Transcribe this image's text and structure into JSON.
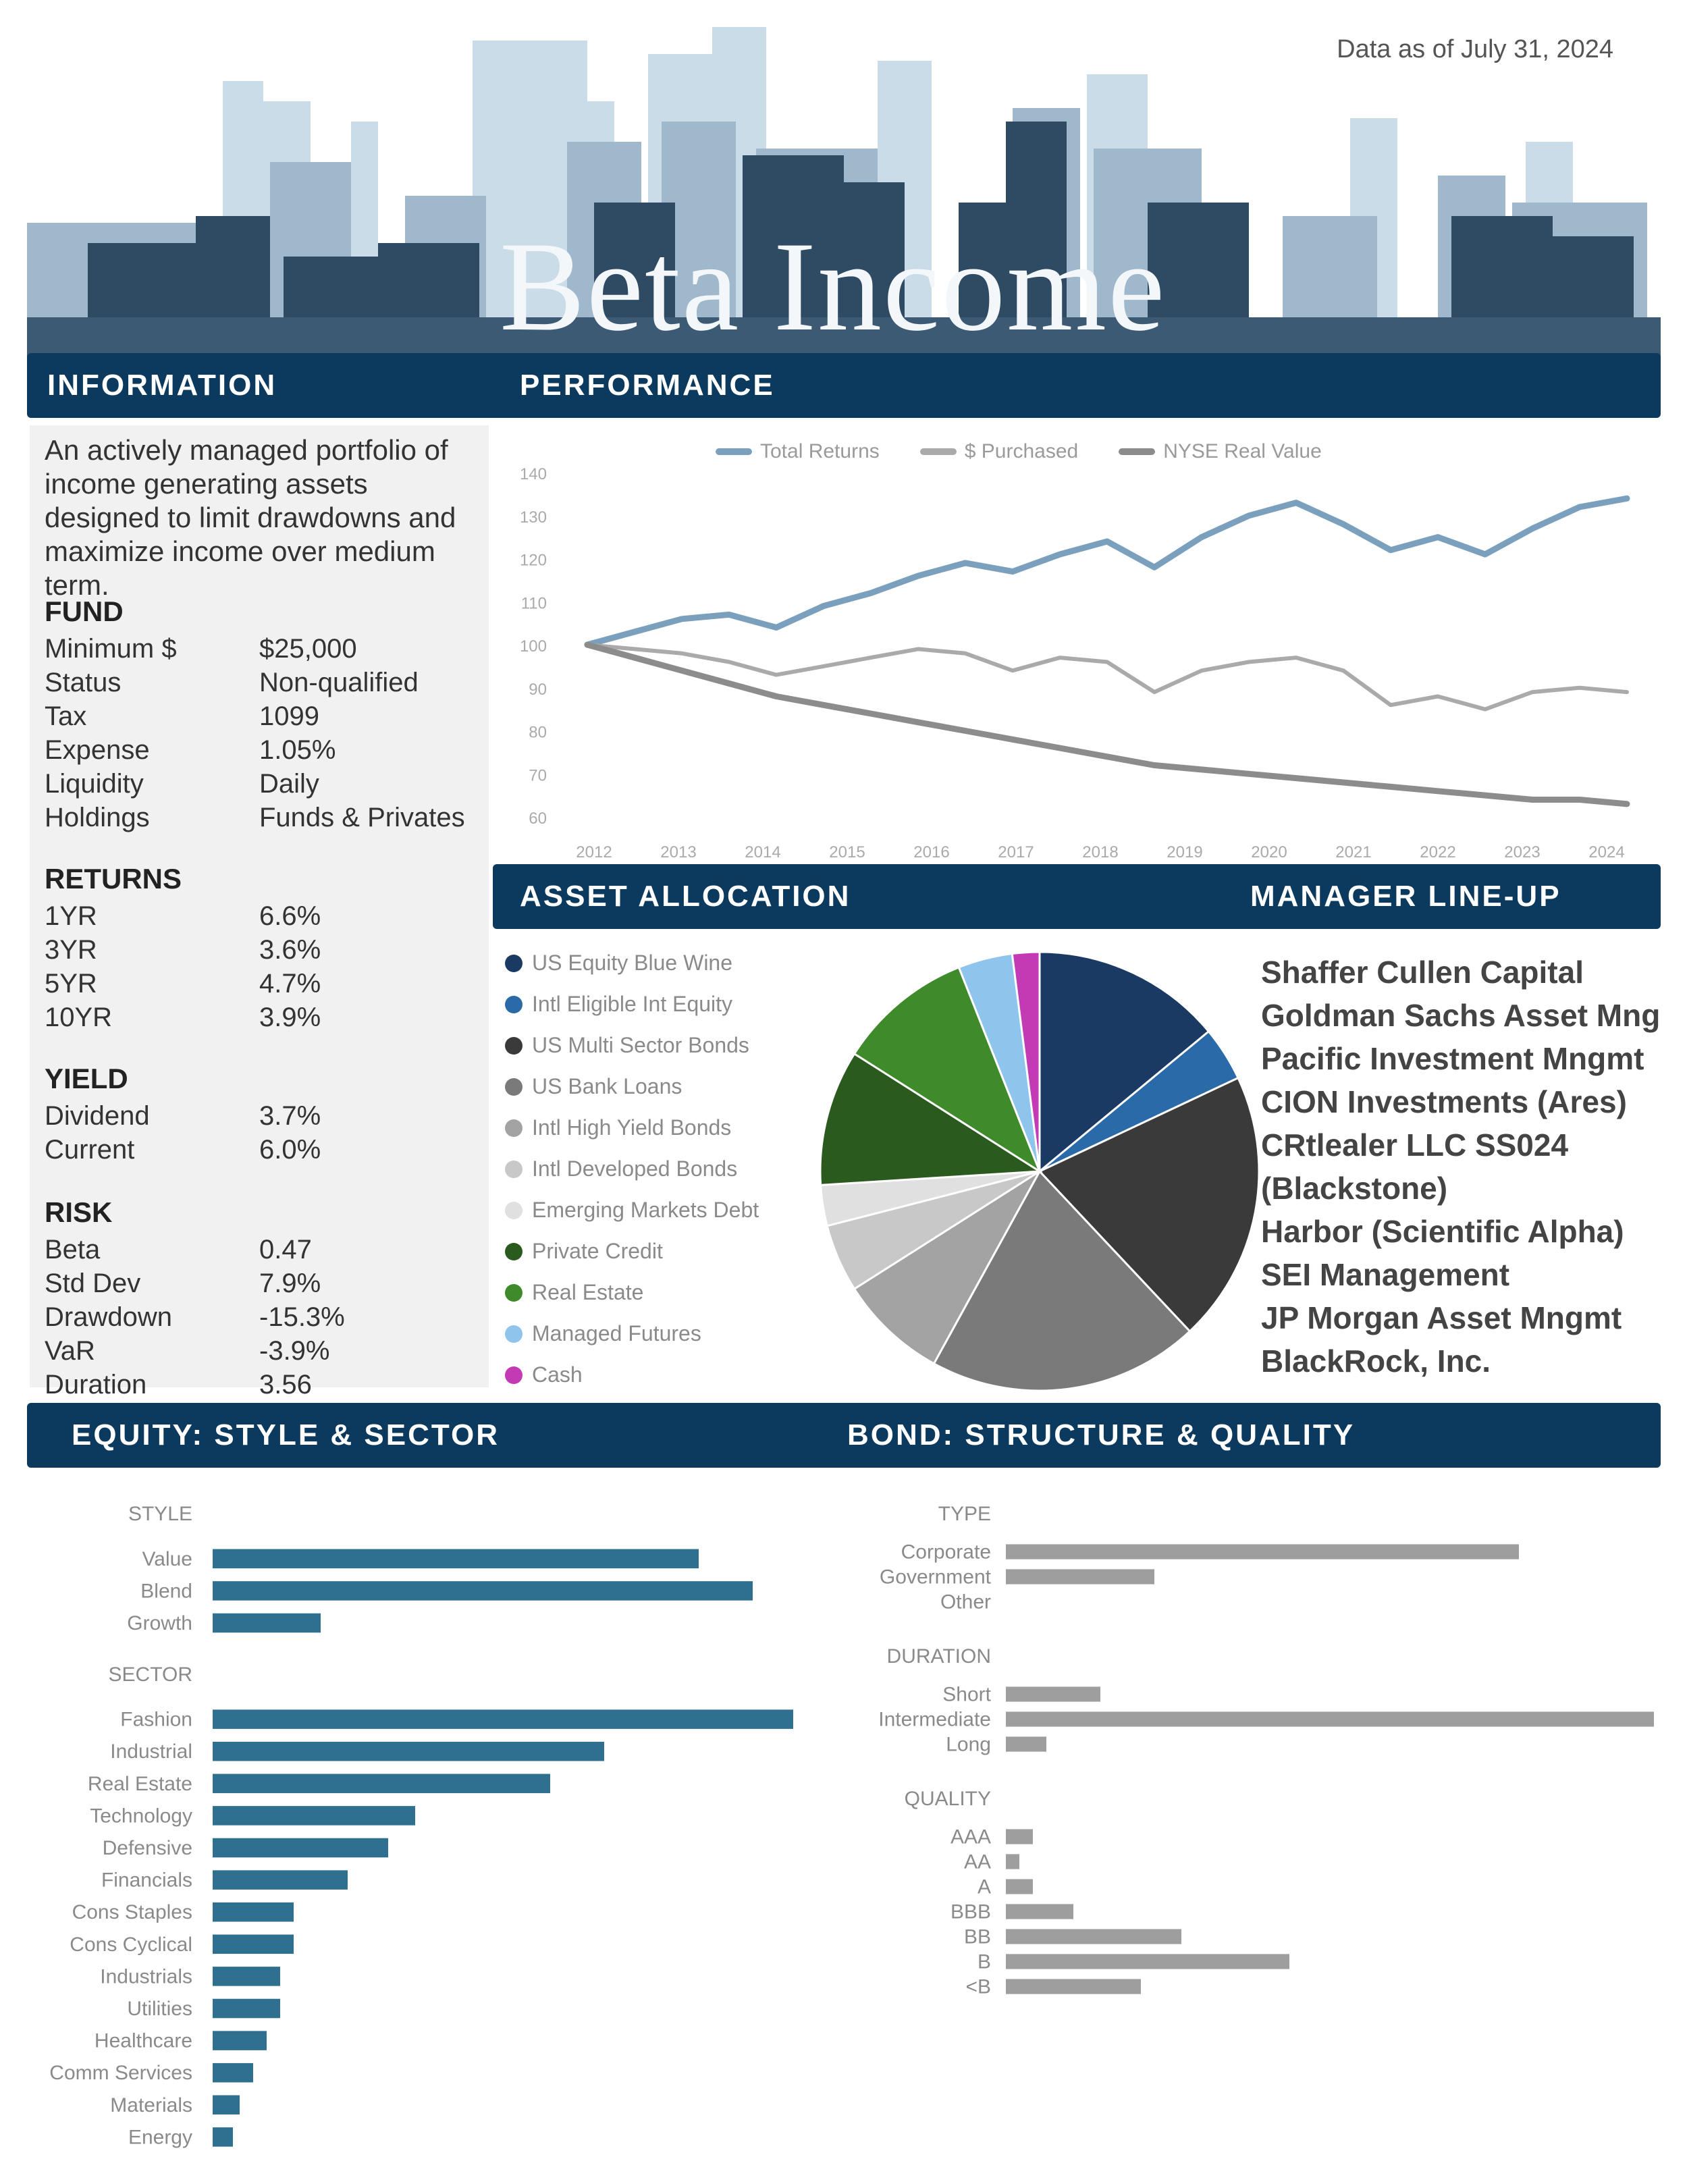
{
  "header": {
    "as_of": "Data as of July 31, 2024",
    "title": "Beta Income"
  },
  "bands": {
    "information": "INFORMATION",
    "performance": "PERFORMANCE",
    "asset_allocation": "ASSET ALLOCATION",
    "manager_lineup": "MANAGER LINE-UP",
    "equity": "EQUITY: STYLE & SECTOR",
    "bond": "BOND: STRUCTURE & QUALITY"
  },
  "information": {
    "description": "An actively managed portfolio of income generating assets designed to limit drawdowns and maximize income over medium term.",
    "fund": {
      "heading": "FUND",
      "rows": [
        {
          "k": "Minimum $",
          "v": "$25,000"
        },
        {
          "k": "Status",
          "v": "Non-qualified"
        },
        {
          "k": "Tax",
          "v": "1099"
        },
        {
          "k": "Expense",
          "v": "1.05%"
        },
        {
          "k": "Liquidity",
          "v": "Daily"
        },
        {
          "k": "Holdings",
          "v": "Funds & Privates"
        }
      ]
    },
    "returns": {
      "heading": "RETURNS",
      "rows": [
        {
          "k": "1YR",
          "v": "6.6%"
        },
        {
          "k": "3YR",
          "v": "3.6%"
        },
        {
          "k": "5YR",
          "v": "4.7%"
        },
        {
          "k": "10YR",
          "v": "3.9%"
        }
      ]
    },
    "yield": {
      "heading": "YIELD",
      "rows": [
        {
          "k": "Dividend",
          "v": "3.7%"
        },
        {
          "k": "Current",
          "v": "6.0%"
        }
      ]
    },
    "risk": {
      "heading": "RISK",
      "rows": [
        {
          "k": "Beta",
          "v": "0.47"
        },
        {
          "k": "Std Dev",
          "v": "7.9%"
        },
        {
          "k": "Drawdown",
          "v": "-15.3%"
        },
        {
          "k": "VaR",
          "v": "-3.9%"
        },
        {
          "k": "Duration",
          "v": "3.56"
        }
      ]
    }
  },
  "performance_legend": [
    "Total Returns",
    "$ Purchased",
    "NYSE Real Value"
  ],
  "allocation_legend": [
    {
      "label": "US Equity Blue Wine",
      "color": "#1b3a63"
    },
    {
      "label": "Intl Eligible Int Equity",
      "color": "#2a6aa8"
    },
    {
      "label": "US Multi Sector Bonds",
      "color": "#3a3a3a"
    },
    {
      "label": "US Bank Loans",
      "color": "#7a7a7a"
    },
    {
      "label": "Intl High Yield Bonds",
      "color": "#a3a3a3"
    },
    {
      "label": "Intl Developed Bonds",
      "color": "#c8c8c8"
    },
    {
      "label": "Emerging Markets Debt",
      "color": "#e0e0e0"
    },
    {
      "label": "Private Credit",
      "color": "#2b5a1e"
    },
    {
      "label": "Real Estate",
      "color": "#3f8a2a"
    },
    {
      "label": "Managed Futures",
      "color": "#8fc4ec"
    },
    {
      "label": "Cash",
      "color": "#c23bb4"
    }
  ],
  "managers": [
    "Shaffer Cullen Capital",
    "Goldman Sachs Asset Mng",
    "Pacific Investment Mngmt",
    "CION Investments (Ares)",
    "CRtlealer LLC SS024",
    "(Blackstone)",
    "Harbor (Scientific Alpha)",
    "SEI Management",
    "JP Morgan Asset Mngmt",
    "BlackRock, Inc."
  ],
  "chart_data": [
    {
      "type": "line",
      "title": "",
      "x_ticks": [
        "2012",
        "2013",
        "2014",
        "2015",
        "2016",
        "2017",
        "2018",
        "2019",
        "2020",
        "2021",
        "2022",
        "2023",
        "2024"
      ],
      "ylim": [
        60,
        140
      ],
      "y_ticks": [
        "140",
        "130",
        "120",
        "110",
        "100",
        "90",
        "80",
        "70",
        "60"
      ],
      "series": [
        {
          "name": "Total Returns",
          "color": "#7aa0be",
          "values": [
            100,
            103,
            106,
            107,
            104,
            109,
            112,
            116,
            119,
            117,
            121,
            124,
            118,
            125,
            130,
            133,
            128,
            122,
            125,
            121,
            127,
            132,
            134
          ]
        },
        {
          "name": "$ Purchased",
          "color": "#aaaaaa",
          "values": [
            100,
            99,
            98,
            96,
            93,
            95,
            97,
            99,
            98,
            94,
            97,
            96,
            89,
            94,
            96,
            97,
            94,
            86,
            88,
            85,
            89,
            90,
            89
          ]
        },
        {
          "name": "NYSE Real Value",
          "color": "#8c8c8c",
          "values": [
            100,
            97,
            94,
            91,
            88,
            86,
            84,
            82,
            80,
            78,
            76,
            74,
            72,
            71,
            70,
            69,
            68,
            67,
            66,
            65,
            64,
            64,
            63
          ]
        }
      ]
    },
    {
      "type": "pie",
      "title": "",
      "series": [
        {
          "name": "US Equity Blue Wine",
          "value": 14
        },
        {
          "name": "Intl Eligible Int Equity",
          "value": 4
        },
        {
          "name": "US Multi Sector Bonds",
          "value": 20
        },
        {
          "name": "US Bank Loans",
          "value": 20
        },
        {
          "name": "Intl High Yield Bonds",
          "value": 8
        },
        {
          "name": "Intl Developed Bonds",
          "value": 5
        },
        {
          "name": "Emerging Markets Debt",
          "value": 3
        },
        {
          "name": "Private Credit",
          "value": 10
        },
        {
          "name": "Real Estate",
          "value": 10
        },
        {
          "name": "Managed Futures",
          "value": 4
        },
        {
          "name": "Cash",
          "value": 2
        }
      ]
    },
    {
      "type": "bar",
      "orientation": "horizontal",
      "title": "",
      "groups": [
        {
          "heading": "STYLE",
          "categories": [
            "Value",
            "Blend",
            "Growth"
          ],
          "values": [
            36,
            40,
            8
          ]
        },
        {
          "heading": "SECTOR",
          "categories": [
            "Fashion",
            "Industrial",
            "Real Estate",
            "Technology",
            "Defensive",
            "Financials",
            "Cons Staples",
            "Cons Cyclical",
            "Industrials",
            "Utilities",
            "Healthcare",
            "Comm Services",
            "Materials",
            "Energy"
          ],
          "values": [
            43,
            29,
            25,
            15,
            13,
            10,
            6,
            6,
            5,
            5,
            4,
            3,
            2,
            1.5
          ]
        }
      ],
      "xlim": [
        0,
        45
      ],
      "color": "#2f6f8f"
    },
    {
      "type": "bar",
      "orientation": "horizontal",
      "title": "",
      "groups": [
        {
          "heading": "TYPE",
          "categories": [
            "Corporate",
            "Government",
            "Other"
          ],
          "values": [
            38,
            11,
            0
          ]
        },
        {
          "heading": "DURATION",
          "categories": [
            "Short",
            "Intermediate",
            "Long"
          ],
          "values": [
            7,
            48,
            3
          ]
        },
        {
          "heading": "QUALITY",
          "categories": [
            "AAA",
            "AA",
            "A",
            "BBB",
            "BB",
            "B",
            "<B"
          ],
          "values": [
            2,
            1,
            2,
            5,
            13,
            21,
            10
          ]
        }
      ],
      "xlim": [
        0,
        50
      ],
      "color": "#9e9e9e"
    }
  ]
}
